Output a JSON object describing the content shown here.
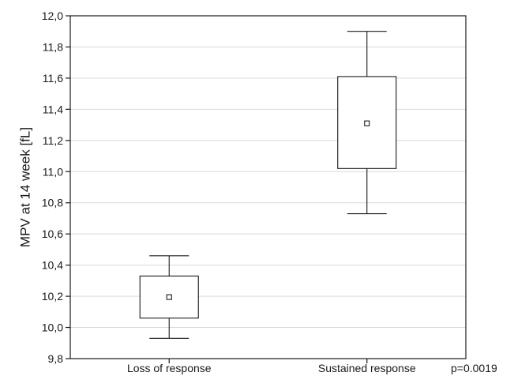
{
  "chart_data": {
    "type": "box",
    "title": "",
    "xlabel": "",
    "ylabel": "MPV at 14 week [fL]",
    "ylim": [
      9.8,
      12.0
    ],
    "yticks": [
      9.8,
      10.0,
      10.2,
      10.4,
      10.6,
      10.8,
      11.0,
      11.2,
      11.4,
      11.6,
      11.8,
      12.0
    ],
    "ytick_labels": [
      "9,8",
      "10,0",
      "10,2",
      "10,4",
      "10,6",
      "10,8",
      "11,0",
      "11,2",
      "11,4",
      "11,6",
      "11,8",
      "12,0"
    ],
    "grid": "horizontal",
    "categories": [
      "Loss of response",
      "Sustained response"
    ],
    "boxes": [
      {
        "category": "Loss of response",
        "whisker_low": 9.93,
        "box_low": 10.06,
        "center": 10.195,
        "box_high": 10.33,
        "whisker_high": 10.46
      },
      {
        "category": "Sustained response",
        "whisker_low": 10.73,
        "box_low": 11.02,
        "center": 11.31,
        "box_high": 11.61,
        "whisker_high": 11.9
      }
    ],
    "annotation": "p=0.0019",
    "colors": {
      "line": "#1a1a1a",
      "grid": "#d9d9d9",
      "background": "#ffffff"
    }
  }
}
